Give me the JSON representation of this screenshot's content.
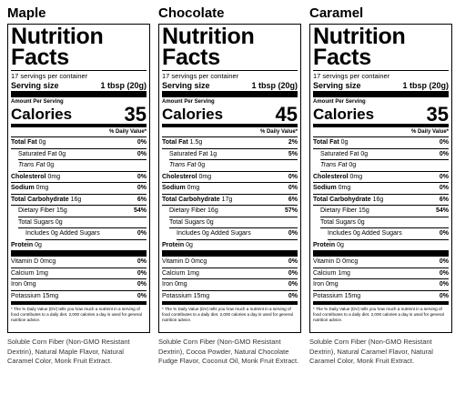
{
  "labels": [
    {
      "flavor": "Maple",
      "title": "Nutrition Facts",
      "servings": "17 servings per container",
      "serving_size_label": "Serving size",
      "serving_size": "1 tbsp (20g)",
      "amount_per_serving": "Amount Per Serving",
      "calories_label": "Calories",
      "calories": "35",
      "daily_value_header": "% Daily Value*",
      "rows": [
        {
          "name": "Total Fat",
          "amount": "0g",
          "dv": "0%"
        },
        {
          "name": "Saturated Fat",
          "amount": "0g",
          "dv": "0%"
        },
        {
          "name": "Trans Fat",
          "amount": "0g"
        },
        {
          "name": "Cholesterol",
          "amount": "0mg",
          "dv": "0%"
        },
        {
          "name": "Sodium",
          "amount": "0mg",
          "dv": "0%"
        },
        {
          "name": "Total Carbohydrate",
          "amount": "16g",
          "dv": "6%"
        },
        {
          "name": "Dietary Fiber",
          "amount": "15g",
          "dv": "54%"
        },
        {
          "name": "Total Sugars",
          "amount": "0g"
        },
        {
          "name": "Includes 0g Added Sugars",
          "dv": "0%"
        },
        {
          "name": "Protein",
          "amount": "0g"
        },
        {
          "name": "Vitamin D",
          "amount": "0mcg",
          "dv": "0%"
        },
        {
          "name": "Calcium",
          "amount": "1mg",
          "dv": "0%"
        },
        {
          "name": "Iron",
          "amount": "0mg",
          "dv": "0%"
        },
        {
          "name": "Potassium",
          "amount": "15mg",
          "dv": "0%"
        }
      ],
      "footnote": "* The % Daily Value (DV) tells you how much a nutrient in a serving of food contributes to a daily diet. 2,000 calories a day is used for general nutrition advice.",
      "ingredients": "Soluble Corn Fiber (Non-GMO Resistant Dextrin), Natural Maple Flavor, Natural Caramel Color, Monk Fruit Extract."
    },
    {
      "flavor": "Chocolate",
      "title": "Nutrition Facts",
      "servings": "17 servings per container",
      "serving_size_label": "Serving size",
      "serving_size": "1 tbsp (20g)",
      "amount_per_serving": "Amount Per Serving",
      "calories_label": "Calories",
      "calories": "45",
      "daily_value_header": "% Daily Value*",
      "rows": [
        {
          "name": "Total Fat",
          "amount": "1.5g",
          "dv": "2%"
        },
        {
          "name": "Saturated Fat",
          "amount": "1g",
          "dv": "5%"
        },
        {
          "name": "Trans Fat",
          "amount": "0g"
        },
        {
          "name": "Cholesterol",
          "amount": "0mg",
          "dv": "0%"
        },
        {
          "name": "Sodium",
          "amount": "0mg",
          "dv": "0%"
        },
        {
          "name": "Total Carbohydrate",
          "amount": "17g",
          "dv": "6%"
        },
        {
          "name": "Dietary Fiber",
          "amount": "16g",
          "dv": "57%"
        },
        {
          "name": "Total Sugars",
          "amount": "0g"
        },
        {
          "name": "Includes 0g Added Sugars",
          "dv": "0%"
        },
        {
          "name": "Protein",
          "amount": "0g"
        },
        {
          "name": "Vitamin D",
          "amount": "0mcg",
          "dv": "0%"
        },
        {
          "name": "Calcium",
          "amount": "1mg",
          "dv": "0%"
        },
        {
          "name": "Iron",
          "amount": "0mg",
          "dv": "0%"
        },
        {
          "name": "Potassium",
          "amount": "15mg",
          "dv": "0%"
        }
      ],
      "footnote": "* The % Daily Value (DV) tells you how much a nutrient in a serving of food contributes to a daily diet. 2,000 calories a day is used for general nutrition advice.",
      "ingredients": "Soluble Corn Fiber (Non-GMO Resistant Dextrin), Cocoa Powder, Natural Chocolate Fudge Flavor, Coconut Oil, Monk Fruit Extract."
    },
    {
      "flavor": "Caramel",
      "title": "Nutrition Facts",
      "servings": "17 servings per container",
      "serving_size_label": "Serving size",
      "serving_size": "1 tbsp (20g)",
      "amount_per_serving": "Amount Per Serving",
      "calories_label": "Calories",
      "calories": "35",
      "daily_value_header": "% Daily Value*",
      "rows": [
        {
          "name": "Total Fat",
          "amount": "0g",
          "dv": "0%"
        },
        {
          "name": "Saturated Fat",
          "amount": "0g",
          "dv": "0%"
        },
        {
          "name": "Trans Fat",
          "amount": "0g"
        },
        {
          "name": "Cholesterol",
          "amount": "0mg",
          "dv": "0%"
        },
        {
          "name": "Sodium",
          "amount": "0mg",
          "dv": "0%"
        },
        {
          "name": "Total Carbohydrate",
          "amount": "16g",
          "dv": "6%"
        },
        {
          "name": "Dietary Fiber",
          "amount": "15g",
          "dv": "54%"
        },
        {
          "name": "Total Sugars",
          "amount": "0g"
        },
        {
          "name": "Includes 0g Added Sugars",
          "dv": "0%"
        },
        {
          "name": "Protein",
          "amount": "0g"
        },
        {
          "name": "Vitamin D",
          "amount": "0mcg",
          "dv": "0%"
        },
        {
          "name": "Calcium",
          "amount": "1mg",
          "dv": "0%"
        },
        {
          "name": "Iron",
          "amount": "0mg",
          "dv": "0%"
        },
        {
          "name": "Potassium",
          "amount": "15mg",
          "dv": "0%"
        }
      ],
      "footnote": "* The % Daily Value (DV) tells you how much a nutrient in a serving of food contributes to a daily diet. 2,000 calories a day is used for general nutrition advice.",
      "ingredients": "Soluble Corn Fiber (Non-GMO Resistant Dextrin), Natural Caramel Flavor, Natural Caramel Color, Monk Fruit Extract."
    }
  ]
}
